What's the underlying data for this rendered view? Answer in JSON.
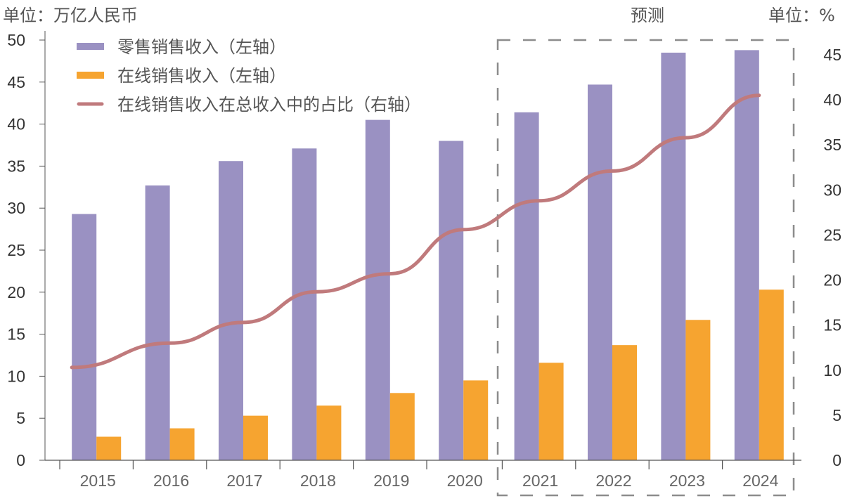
{
  "chart_data": {
    "type": "bar",
    "title": "",
    "left_unit": "单位：万亿人民币",
    "right_unit": "单位：%",
    "forecast_label": "预测",
    "categories": [
      "2015",
      "2016",
      "2017",
      "2018",
      "2019",
      "2020",
      "2021",
      "2022",
      "2023",
      "2024"
    ],
    "forecast_categories": [
      "2021",
      "2022",
      "2023",
      "2024"
    ],
    "series": [
      {
        "name": "零售销售收入（左轴）",
        "type": "bar",
        "axis": "left",
        "color": "#9a91c2",
        "values": [
          29.3,
          32.7,
          35.6,
          37.1,
          40.5,
          38.0,
          41.4,
          44.7,
          48.5,
          48.8
        ]
      },
      {
        "name": "在线销售收入（左轴）",
        "type": "bar",
        "axis": "left",
        "color": "#f6a430",
        "values": [
          2.8,
          3.8,
          5.3,
          6.5,
          8.0,
          9.5,
          11.6,
          13.7,
          16.7,
          20.3
        ]
      },
      {
        "name": "在线销售收入在总收入中的占比（右轴）",
        "type": "line",
        "axis": "right",
        "color": "#c07a7c",
        "values": [
          10.3,
          13.0,
          15.3,
          18.7,
          20.7,
          25.6,
          28.8,
          32.1,
          35.8,
          40.5
        ]
      }
    ],
    "left_axis": {
      "ylim": [
        0,
        50
      ],
      "ticks": [
        0,
        5,
        10,
        15,
        20,
        25,
        30,
        35,
        40,
        45,
        50
      ]
    },
    "right_axis": {
      "ylim": [
        0,
        45
      ],
      "ticks": [
        0,
        5,
        10,
        15,
        20,
        25,
        30,
        35,
        40,
        45
      ]
    },
    "xlabel": "",
    "grid": false,
    "legend_position": "top-left"
  }
}
